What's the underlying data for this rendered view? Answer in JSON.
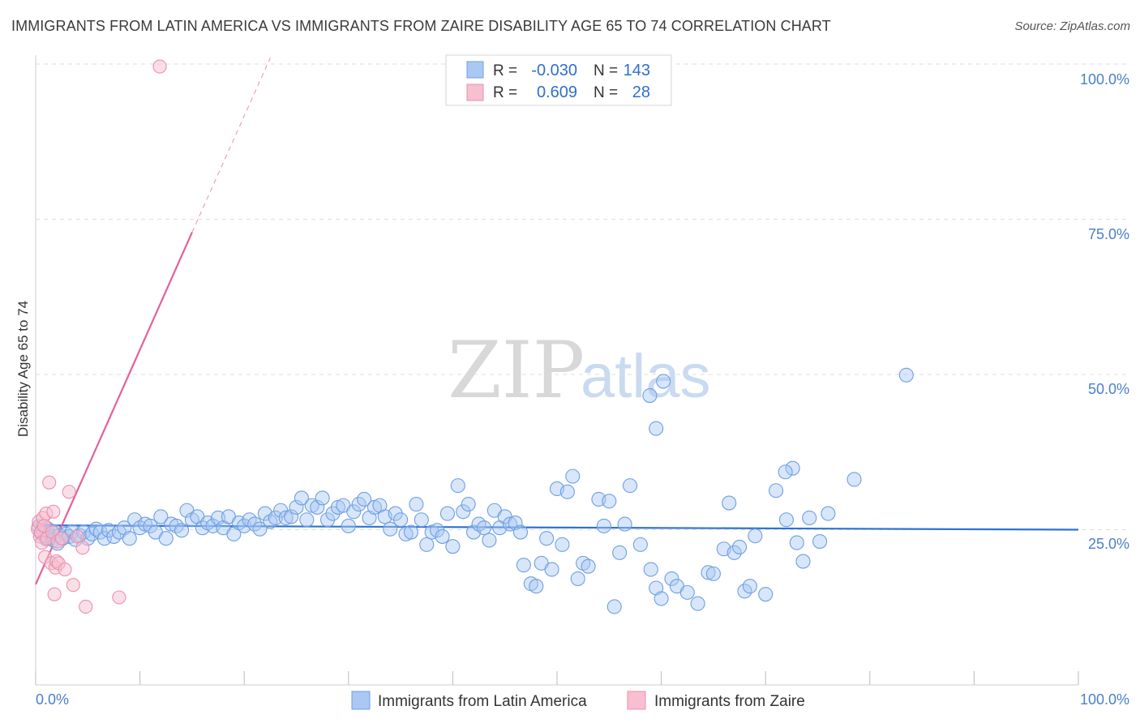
{
  "header": {
    "title": "IMMIGRANTS FROM LATIN AMERICA VS IMMIGRANTS FROM ZAIRE DISABILITY AGE 65 TO 74 CORRELATION CHART",
    "source": "Source: ZipAtlas.com"
  },
  "watermark": {
    "zip": "ZIP",
    "atlas": "atlas"
  },
  "legend_box": {
    "rows": [
      {
        "r_label": "R =",
        "r_value": "-0.030",
        "n_label": "N =",
        "n_value": "143"
      },
      {
        "r_label": "R =",
        "r_value": "0.609",
        "n_label": "N =",
        "n_value": "28"
      }
    ]
  },
  "bottom_legend": {
    "series1": "Immigrants from Latin America",
    "series2": "Immigrants from Zaire"
  },
  "colors": {
    "blue_fill": "#a9c8f3",
    "blue_stroke": "#6f9fe0",
    "blue_line": "#2f72d0",
    "pink_fill": "#f7bfd0",
    "pink_stroke": "#ec8fae",
    "pink_line": "#e4609a",
    "axis_label": "#4a7fcc",
    "grid": "#dddddd"
  },
  "chart_data": {
    "type": "scatter",
    "ylabel": "Disability Age 65 to 74",
    "x_tick_labels": [
      "0.0%",
      "100.0%"
    ],
    "y_tick_labels": [
      "25.0%",
      "50.0%",
      "75.0%",
      "100.0%"
    ],
    "xlim": [
      0,
      100
    ],
    "ylim": [
      0,
      100
    ],
    "y_ticks": [
      25,
      50,
      75,
      100
    ],
    "grid": true,
    "series": [
      {
        "name": "Immigrants from Latin America",
        "color": "#a9c8f3",
        "r": -0.03,
        "n": 143,
        "trend": {
          "x": [
            0,
            100
          ],
          "y": [
            25.7,
            25.0
          ]
        },
        "points": [
          [
            0.3,
            25.5
          ],
          [
            0.5,
            24.5
          ],
          [
            0.7,
            25
          ],
          [
            0.9,
            24
          ],
          [
            1.0,
            23.5
          ],
          [
            1.1,
            25.2
          ],
          [
            1.2,
            24.2
          ],
          [
            1.4,
            23.8
          ],
          [
            1.5,
            24.8
          ],
          [
            1.7,
            23.3
          ],
          [
            1.9,
            24.6
          ],
          [
            2.1,
            22.8
          ],
          [
            2.3,
            24.1
          ],
          [
            2.6,
            23.6
          ],
          [
            2.9,
            24.3
          ],
          [
            3.2,
            23.9
          ],
          [
            3.5,
            24.7
          ],
          [
            3.8,
            23.4
          ],
          [
            4.2,
            24.1
          ],
          [
            4.6,
            24.6
          ],
          [
            5.0,
            23.6
          ],
          [
            5.4,
            24.3
          ],
          [
            5.8,
            25.1
          ],
          [
            6.2,
            24.6
          ],
          [
            6.6,
            23.6
          ],
          [
            7.0,
            24.9
          ],
          [
            7.5,
            23.9
          ],
          [
            8.0,
            24.6
          ],
          [
            8.5,
            25.3
          ],
          [
            9.0,
            23.6
          ],
          [
            9.5,
            26.6
          ],
          [
            10.0,
            25.3
          ],
          [
            10.5,
            25.9
          ],
          [
            11.0,
            25.6
          ],
          [
            11.5,
            24.6
          ],
          [
            12.0,
            27.1
          ],
          [
            12.5,
            23.6
          ],
          [
            13.0,
            25.9
          ],
          [
            13.5,
            25.6
          ],
          [
            14.0,
            24.9
          ],
          [
            14.5,
            28.1
          ],
          [
            15.0,
            26.6
          ],
          [
            15.5,
            27.1
          ],
          [
            16.0,
            25.3
          ],
          [
            16.5,
            26.1
          ],
          [
            17.0,
            25.6
          ],
          [
            17.5,
            26.9
          ],
          [
            18.0,
            25.3
          ],
          [
            18.5,
            27.1
          ],
          [
            19.0,
            24.3
          ],
          [
            19.5,
            26.1
          ],
          [
            20.0,
            25.6
          ],
          [
            20.5,
            26.6
          ],
          [
            21.0,
            25.9
          ],
          [
            21.5,
            25.1
          ],
          [
            22.0,
            27.6
          ],
          [
            22.5,
            26.3
          ],
          [
            23.0,
            26.9
          ],
          [
            23.5,
            28.1
          ],
          [
            24.0,
            26.9
          ],
          [
            24.5,
            27.1
          ],
          [
            25.0,
            28.6
          ],
          [
            25.5,
            30.1
          ],
          [
            26.0,
            26.6
          ],
          [
            26.5,
            28.9
          ],
          [
            27.0,
            28.6
          ],
          [
            27.5,
            30.1
          ],
          [
            28.0,
            26.6
          ],
          [
            28.5,
            27.6
          ],
          [
            29.0,
            28.6
          ],
          [
            29.5,
            28.9
          ],
          [
            30.0,
            25.6
          ],
          [
            30.5,
            27.9
          ],
          [
            31.0,
            29.1
          ],
          [
            31.5,
            29.9
          ],
          [
            32.0,
            26.9
          ],
          [
            32.5,
            28.6
          ],
          [
            33.0,
            28.9
          ],
          [
            33.5,
            27.1
          ],
          [
            34.0,
            25.1
          ],
          [
            34.5,
            27.6
          ],
          [
            35.0,
            26.6
          ],
          [
            35.5,
            24.3
          ],
          [
            36.0,
            24.6
          ],
          [
            36.5,
            29.1
          ],
          [
            37.0,
            26.6
          ],
          [
            37.5,
            22.6
          ],
          [
            38.0,
            24.6
          ],
          [
            38.5,
            24.9
          ],
          [
            39.0,
            23.9
          ],
          [
            39.5,
            27.6
          ],
          [
            40.0,
            22.3
          ],
          [
            40.5,
            32.1
          ],
          [
            41.0,
            27.9
          ],
          [
            41.5,
            29.1
          ],
          [
            42.0,
            24.6
          ],
          [
            42.5,
            25.9
          ],
          [
            43.0,
            25.3
          ],
          [
            43.5,
            23.3
          ],
          [
            44.0,
            28.1
          ],
          [
            44.5,
            25.3
          ],
          [
            45.0,
            27.1
          ],
          [
            45.5,
            25.9
          ],
          [
            46.0,
            26.1
          ],
          [
            46.5,
            24.6
          ],
          [
            46.8,
            19.3
          ],
          [
            47.5,
            16.3
          ],
          [
            48.0,
            15.9
          ],
          [
            48.5,
            19.6
          ],
          [
            49.0,
            23.6
          ],
          [
            49.5,
            18.6
          ],
          [
            50.0,
            31.6
          ],
          [
            50.5,
            22.6
          ],
          [
            51.0,
            31.1
          ],
          [
            51.5,
            33.6
          ],
          [
            52.0,
            17.1
          ],
          [
            52.5,
            19.6
          ],
          [
            53.0,
            19.1
          ],
          [
            54.0,
            29.9
          ],
          [
            54.5,
            25.6
          ],
          [
            55.0,
            29.6
          ],
          [
            55.5,
            12.6
          ],
          [
            56.0,
            21.3
          ],
          [
            56.5,
            25.9
          ],
          [
            57.0,
            32.1
          ],
          [
            58.0,
            22.6
          ],
          [
            59.0,
            18.6
          ],
          [
            59.5,
            15.6
          ],
          [
            60.0,
            13.9
          ],
          [
            61.0,
            17.1
          ],
          [
            61.5,
            15.9
          ],
          [
            62.5,
            14.9
          ],
          [
            63.5,
            13.1
          ],
          [
            64.5,
            18.1
          ],
          [
            65.0,
            17.9
          ],
          [
            66.0,
            21.9
          ],
          [
            66.5,
            29.3
          ],
          [
            67.0,
            21.3
          ],
          [
            68.0,
            15.1
          ],
          [
            68.5,
            15.9
          ],
          [
            69.0,
            24.0
          ],
          [
            70.0,
            14.6
          ],
          [
            71.0,
            31.3
          ],
          [
            72.0,
            26.6
          ],
          [
            73.0,
            22.9
          ]
        ],
        "outliers": [
          [
            60.2,
            48.9
          ],
          [
            58.9,
            46.6
          ],
          [
            59.5,
            41.3
          ],
          [
            83.5,
            49.9
          ],
          [
            72.6,
            34.9
          ],
          [
            78.5,
            33.1
          ],
          [
            73.6,
            19.9
          ],
          [
            76.0,
            27.6
          ],
          [
            74.2,
            26.9
          ],
          [
            75.2,
            23.1
          ],
          [
            71.9,
            34.3
          ],
          [
            67.5,
            22.2
          ]
        ]
      },
      {
        "name": "Immigrants from Zaire",
        "color": "#f7bfd0",
        "r": 0.609,
        "n": 28,
        "trend": {
          "x": [
            0,
            15
          ],
          "y": [
            16.2,
            72.9
          ],
          "dashed_to": {
            "x": 22.5,
            "y": 101.0
          }
        },
        "points": [
          [
            0.2,
            25.1
          ],
          [
            0.3,
            26.3
          ],
          [
            0.4,
            23.9
          ],
          [
            0.5,
            24.6
          ],
          [
            0.6,
            22.9
          ],
          [
            0.7,
            26.9
          ],
          [
            0.8,
            25.6
          ],
          [
            0.9,
            20.6
          ],
          [
            1.0,
            27.6
          ],
          [
            1.1,
            23.6
          ],
          [
            1.3,
            32.6
          ],
          [
            1.5,
            19.6
          ],
          [
            1.6,
            24.6
          ],
          [
            1.7,
            27.9
          ],
          [
            1.8,
            14.6
          ],
          [
            1.9,
            18.9
          ],
          [
            2.0,
            19.9
          ],
          [
            2.1,
            23.1
          ],
          [
            2.2,
            19.6
          ],
          [
            2.5,
            23.6
          ],
          [
            2.8,
            18.6
          ],
          [
            3.2,
            31.1
          ],
          [
            3.6,
            16.1
          ],
          [
            4.0,
            23.9
          ],
          [
            4.5,
            22.1
          ],
          [
            4.8,
            12.6
          ],
          [
            8.0,
            14.1
          ],
          [
            11.9,
            99.6
          ]
        ]
      }
    ]
  }
}
